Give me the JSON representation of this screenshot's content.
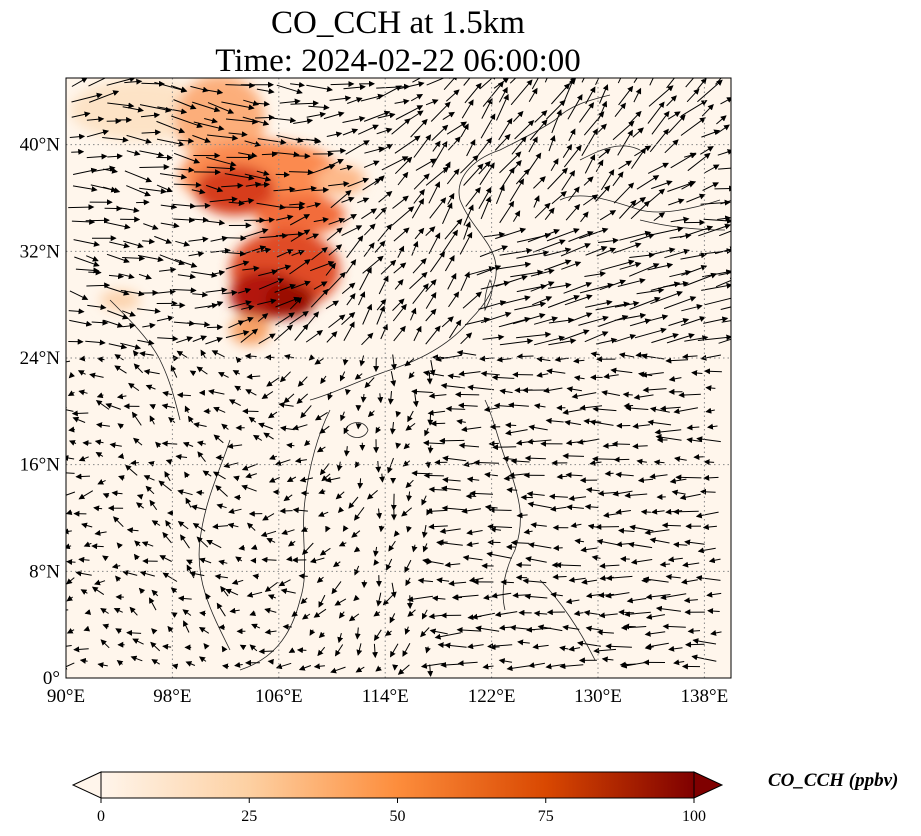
{
  "title": {
    "line1": "CO_CCH at 1.5km",
    "line2": "Time: 2024-02-22 06:00:00"
  },
  "map": {
    "projection": "plate-carree",
    "lon_range": [
      90,
      140
    ],
    "lat_range": [
      0,
      45
    ],
    "gridlines": "dotted",
    "x_ticks": [
      {
        "value": 90,
        "label": "90°E"
      },
      {
        "value": 98,
        "label": "98°E"
      },
      {
        "value": 106,
        "label": "106°E"
      },
      {
        "value": 114,
        "label": "114°E"
      },
      {
        "value": 122,
        "label": "122°E"
      },
      {
        "value": 130,
        "label": "130°E"
      },
      {
        "value": 138,
        "label": "138°E"
      }
    ],
    "y_ticks": [
      {
        "value": 0,
        "label": "0°"
      },
      {
        "value": 8,
        "label": "8°N"
      },
      {
        "value": 16,
        "label": "16°N"
      },
      {
        "value": 24,
        "label": "24°N"
      },
      {
        "value": 32,
        "label": "32°N"
      },
      {
        "value": 40,
        "label": "40°N"
      }
    ],
    "field_overlay": "wind vectors (black arrows)"
  },
  "colorbar": {
    "label": "CO_CCH (ppbv)",
    "colormap": [
      "#fff5eb",
      "#fdd0a2",
      "#fd8d3c",
      "#d94801",
      "#7f0000"
    ],
    "min": 0,
    "max": 100,
    "extend": "both",
    "ticks": [
      {
        "value": 0,
        "label": "0"
      },
      {
        "value": 25,
        "label": "25"
      },
      {
        "value": 50,
        "label": "50"
      },
      {
        "value": 75,
        "label": "75"
      },
      {
        "value": 100,
        "label": "100"
      }
    ]
  }
}
